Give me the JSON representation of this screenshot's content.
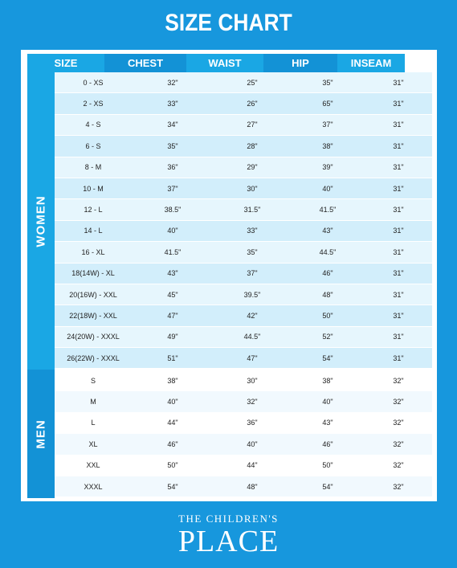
{
  "title": "SIZE CHART",
  "columns": [
    "SIZE",
    "CHEST",
    "WAIST",
    "HIP",
    "INSEAM"
  ],
  "groups": [
    {
      "label": "WOMEN",
      "rows": [
        [
          "0 - XS",
          "32\"",
          "25\"",
          "35\"",
          "31\""
        ],
        [
          "2 - XS",
          "33\"",
          "26\"",
          "65\"",
          "31\""
        ],
        [
          "4 - S",
          "34\"",
          "27\"",
          "37\"",
          "31\""
        ],
        [
          "6 - S",
          "35\"",
          "28\"",
          "38\"",
          "31\""
        ],
        [
          "8 - M",
          "36\"",
          "29\"",
          "39\"",
          "31\""
        ],
        [
          "10 - M",
          "37\"",
          "30\"",
          "40\"",
          "31\""
        ],
        [
          "12 - L",
          "38.5\"",
          "31.5\"",
          "41.5\"",
          "31\""
        ],
        [
          "14 - L",
          "40\"",
          "33\"",
          "43\"",
          "31\""
        ],
        [
          "16 - XL",
          "41.5\"",
          "35\"",
          "44.5\"",
          "31\""
        ],
        [
          "18(14W) - XL",
          "43\"",
          "37\"",
          "46\"",
          "31\""
        ],
        [
          "20(16W) - XXL",
          "45\"",
          "39.5\"",
          "48\"",
          "31\""
        ],
        [
          "22(18W) - XXL",
          "47\"",
          "42\"",
          "50\"",
          "31\""
        ],
        [
          "24(20W) - XXXL",
          "49\"",
          "44.5\"",
          "52\"",
          "31\""
        ],
        [
          "26(22W) - XXXL",
          "51\"",
          "47\"",
          "54\"",
          "31\""
        ]
      ]
    },
    {
      "label": "MEN",
      "rows": [
        [
          "S",
          "38\"",
          "30\"",
          "38\"",
          "32\""
        ],
        [
          "M",
          "40\"",
          "32\"",
          "40\"",
          "32\""
        ],
        [
          "L",
          "44\"",
          "36\"",
          "43\"",
          "32\""
        ],
        [
          "XL",
          "46\"",
          "40\"",
          "46\"",
          "32\""
        ],
        [
          "XXL",
          "50\"",
          "44\"",
          "50\"",
          "32\""
        ],
        [
          "XXXL",
          "54\"",
          "48\"",
          "54\"",
          "32\""
        ]
      ]
    }
  ],
  "colors": {
    "background": "#1797dd",
    "women_row_a": "#e6f6fd",
    "women_row_b": "#d2eefb",
    "men_row_a": "#ffffff",
    "men_row_b": "#f1f9fe"
  },
  "logo": {
    "top_line": "THE CHILDREN'S",
    "bottom_line": "PLACE"
  }
}
